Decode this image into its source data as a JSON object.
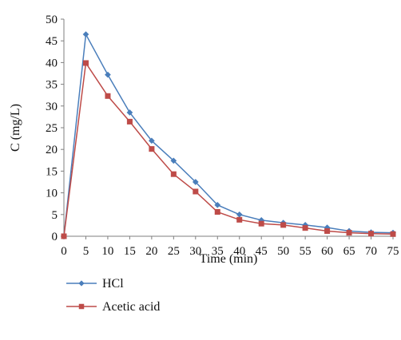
{
  "chart_data": {
    "type": "line",
    "xlabel": "Time (min)",
    "ylabel": "C (mg/L)",
    "x": [
      0,
      5,
      10,
      15,
      20,
      25,
      30,
      35,
      40,
      45,
      50,
      55,
      60,
      65,
      70,
      75
    ],
    "xlim": [
      0,
      75
    ],
    "ylim": [
      0,
      50
    ],
    "xticks": [
      0,
      5,
      10,
      15,
      20,
      25,
      30,
      35,
      40,
      45,
      50,
      55,
      60,
      65,
      70,
      75
    ],
    "yticks": [
      0,
      5,
      10,
      15,
      20,
      25,
      30,
      35,
      40,
      45,
      50
    ],
    "grid": false,
    "legend_position": "bottom-left",
    "series": [
      {
        "name": "HCl",
        "marker": "diamond",
        "color": "#4a7ebb",
        "values": [
          0,
          46.5,
          37.2,
          28.5,
          22.0,
          17.4,
          12.5,
          7.2,
          5.0,
          3.7,
          3.1,
          2.6,
          2.0,
          1.2,
          0.9,
          0.8
        ]
      },
      {
        "name": "Acetic acid",
        "marker": "square",
        "color": "#be4b48",
        "values": [
          0,
          39.9,
          32.3,
          26.4,
          20.1,
          14.3,
          10.3,
          5.6,
          3.8,
          2.9,
          2.6,
          1.9,
          1.2,
          0.8,
          0.6,
          0.5
        ]
      }
    ]
  }
}
